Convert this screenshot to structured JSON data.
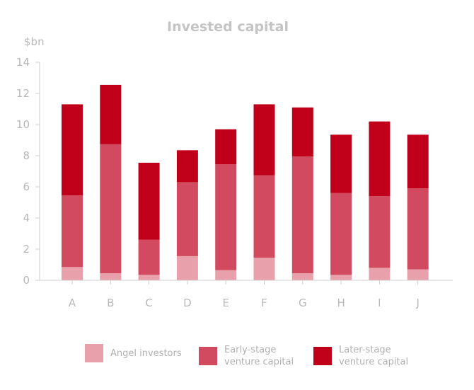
{
  "chart_data": {
    "type": "bar",
    "stacked": true,
    "title": "Invested capital",
    "ylabel": "$bn",
    "xlabel": "",
    "ylim": [
      0,
      14
    ],
    "yticks": [
      0,
      2,
      4,
      6,
      8,
      10,
      12,
      14
    ],
    "grid": false,
    "legend_position": "bottom",
    "categories": [
      "A",
      "B",
      "C",
      "D",
      "E",
      "F",
      "G",
      "H",
      "I",
      "J"
    ],
    "series": [
      {
        "name": "Angel investors",
        "color": "#e8a1ab",
        "values": [
          0.85,
          0.45,
          0.35,
          1.55,
          0.65,
          1.45,
          0.45,
          0.35,
          0.8,
          0.7
        ]
      },
      {
        "name": "Early-stage\nventure capital",
        "color": "#d24a60",
        "values": [
          4.6,
          8.3,
          2.25,
          4.75,
          6.8,
          5.3,
          7.5,
          5.25,
          4.6,
          5.2
        ]
      },
      {
        "name": "Later-stage\nventure capital",
        "color": "#c0001a",
        "values": [
          5.85,
          3.8,
          4.95,
          2.05,
          2.25,
          4.55,
          3.15,
          3.75,
          4.8,
          3.45
        ]
      }
    ]
  }
}
